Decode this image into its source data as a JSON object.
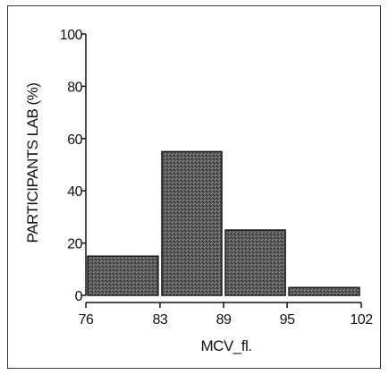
{
  "chart_data": {
    "type": "bar",
    "title": "",
    "xlabel": "MCV_fl.",
    "ylabel": "PARTICIPANTS LAB (%)",
    "x_ticks": [
      "76",
      "83",
      "89",
      "95",
      "102"
    ],
    "x_tick_values": [
      76,
      83,
      89,
      95,
      102
    ],
    "y_ticks": [
      "0",
      "20",
      "40",
      "60",
      "80",
      "100"
    ],
    "y_tick_values": [
      0,
      20,
      40,
      60,
      80,
      100
    ],
    "xlim": [
      76,
      102
    ],
    "ylim": [
      0,
      100
    ],
    "bins": [
      {
        "from": 76,
        "to": 83,
        "value": 15
      },
      {
        "from": 83,
        "to": 89,
        "value": 55
      },
      {
        "from": 89,
        "to": 95,
        "value": 25
      },
      {
        "from": 95,
        "to": 102,
        "value": 3
      }
    ],
    "grid": false,
    "legend": "none",
    "colors": {
      "bar_fill": "#555555",
      "bar_stroke": "#1a1a1a",
      "axis": "#111111"
    }
  }
}
